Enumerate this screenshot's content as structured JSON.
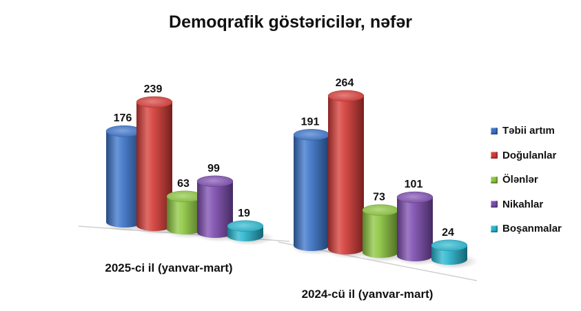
{
  "chart_data": {
    "type": "bar",
    "title": "Demoqrafik göstəricilər, nəfər",
    "categories": [
      "2025-ci il (yanvar-mart)",
      "2024-cü il (yanvar-mart)"
    ],
    "series": [
      {
        "name": "Təbii artım",
        "values": [
          176,
          191
        ],
        "color": "#3a73c9"
      },
      {
        "name": "Doğulanlar",
        "values": [
          239,
          264
        ],
        "color": "#d63a36"
      },
      {
        "name": "Ölənlər",
        "values": [
          63,
          73
        ],
        "color": "#8cc63f"
      },
      {
        "name": "Nikahlar",
        "values": [
          99,
          101
        ],
        "color": "#7d4cb0"
      },
      {
        "name": "Boşanmalar",
        "values": [
          19,
          24
        ],
        "color": "#27b6cf"
      }
    ],
    "ylim": [
      0,
      264
    ],
    "grid": false,
    "legend_position": "right",
    "data_labels": true,
    "style": "3d-cylinder"
  }
}
